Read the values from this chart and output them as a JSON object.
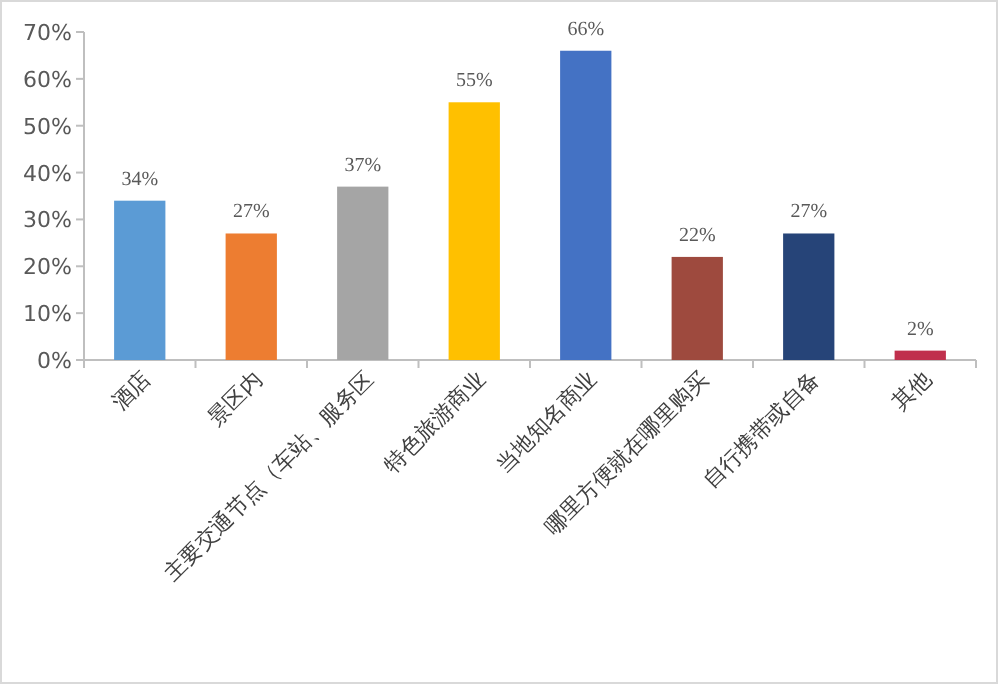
{
  "chart_data": {
    "type": "bar",
    "categories": [
      "酒店",
      "景区内",
      "主要交通节点（车站、服务区",
      "特色旅游商业",
      "当地知名商业",
      "哪里方便就在哪里购买",
      "自行携带或自备",
      "其他"
    ],
    "values": [
      34,
      27,
      37,
      55,
      66,
      22,
      27,
      2
    ],
    "colors": [
      "#5b9bd5",
      "#ed7d31",
      "#a5a5a5",
      "#ffc000",
      "#4472c4",
      "#9e4a3e",
      "#264478",
      "#c0304d"
    ],
    "value_labels": [
      "34%",
      "27%",
      "37%",
      "55%",
      "66%",
      "22%",
      "27%",
      "2%"
    ],
    "ylim": [
      0,
      70
    ],
    "yticks": [
      {
        "value": 0,
        "label": "0%"
      },
      {
        "value": 10,
        "label": "10%"
      },
      {
        "value": 20,
        "label": "20%"
      },
      {
        "value": 30,
        "label": "30%"
      },
      {
        "value": 40,
        "label": "40%"
      },
      {
        "value": 50,
        "label": "50%"
      },
      {
        "value": 60,
        "label": "60%"
      },
      {
        "value": 70,
        "label": "70%"
      }
    ],
    "grid": false
  }
}
